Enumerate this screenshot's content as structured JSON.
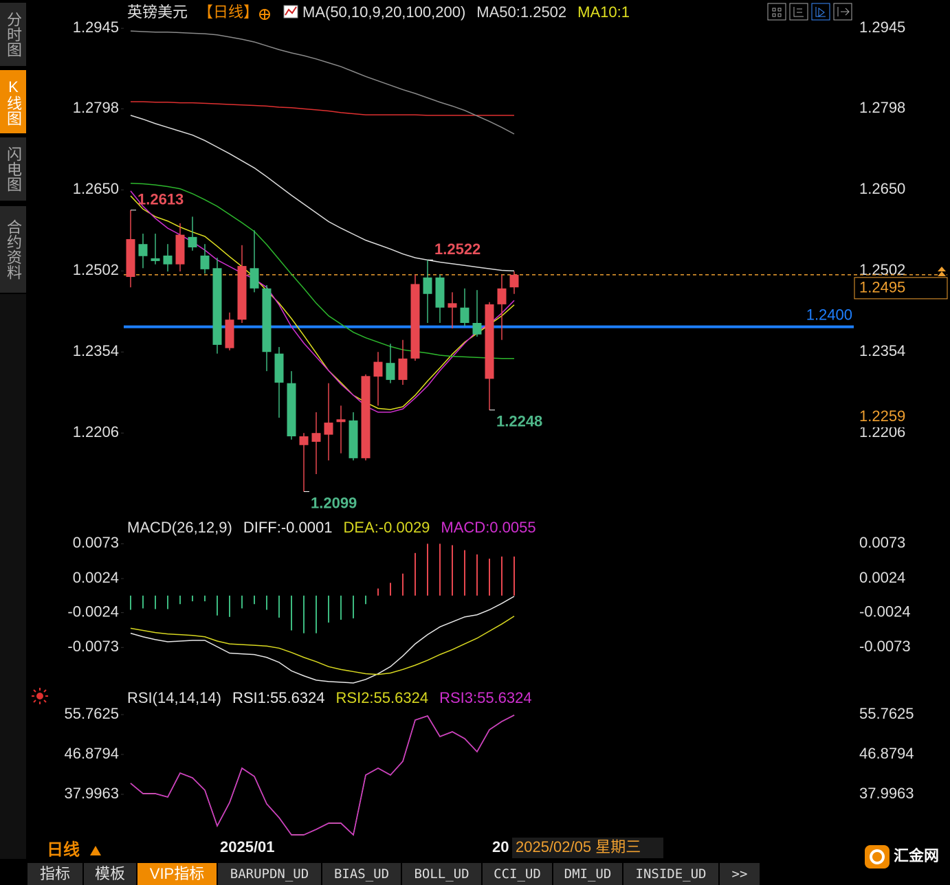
{
  "sidebar": [
    "分时图",
    "K线图",
    "闪电图",
    "合约资料"
  ],
  "header": {
    "symbol": "英镑美元",
    "period": "【日线】"
  },
  "period_label": "日线",
  "tabs": [
    "指标",
    "模板",
    "VIP指标",
    "BARUPDN_UD",
    "BIAS_UD",
    "BOLL_UD",
    "CCI_UD",
    "DMI_UD",
    "INSIDE_UD",
    ">>"
  ],
  "logo": "汇金网",
  "chart_data": [
    {
      "type": "candlestick",
      "indicator": "MA(50,10,9,20,100,200)",
      "categories": [
        null,
        null,
        null,
        null,
        null,
        null,
        null,
        "2025/01",
        null,
        null,
        null,
        null,
        null,
        null,
        null,
        null,
        null,
        null,
        null,
        null,
        null,
        null,
        null,
        null,
        null,
        null,
        null,
        null,
        null,
        "20",
        null,
        null
      ],
      "cursor_date": "2025/02/05 星期三",
      "up_color": "#e8474f",
      "down_color": "#3dbb80",
      "open": [
        1.2491,
        1.2551,
        1.2525,
        1.253,
        1.2514,
        1.2564,
        1.253,
        1.2507,
        1.2361,
        1.2413,
        1.2507,
        1.247,
        1.2351,
        1.2297,
        1.2184,
        1.219,
        1.2203,
        1.2226,
        1.2229,
        1.216,
        1.2309,
        1.2334,
        1.2303,
        1.2342,
        1.249,
        1.249,
        1.2435,
        1.2435,
        1.2407,
        1.2305,
        1.2441,
        1.2472
      ],
      "high": [
        1.2613,
        1.257,
        1.257,
        1.2551,
        1.2589,
        1.2601,
        1.2551,
        1.2526,
        1.2426,
        1.2549,
        1.2576,
        1.2476,
        1.2363,
        1.2319,
        1.2206,
        1.2244,
        1.2297,
        1.2256,
        1.2244,
        1.2313,
        1.2354,
        1.2369,
        1.2376,
        1.2495,
        1.2522,
        1.2495,
        1.2463,
        1.247,
        1.2467,
        1.2445,
        1.2495,
        1.2501
      ],
      "low": [
        1.2472,
        1.2507,
        1.2514,
        1.2501,
        1.2501,
        1.2539,
        1.2497,
        1.2351,
        1.2357,
        1.2407,
        1.2463,
        1.2319,
        1.2234,
        1.2194,
        1.2099,
        1.2131,
        1.2156,
        1.2169,
        1.2156,
        1.2156,
        1.2256,
        1.2297,
        1.2294,
        1.2338,
        1.2407,
        1.2407,
        1.2397,
        1.2401,
        1.2382,
        1.2248,
        1.2376,
        1.246
      ],
      "close": [
        1.256,
        1.2529,
        1.252,
        1.2514,
        1.2568,
        1.2545,
        1.2505,
        1.2367,
        1.2413,
        1.2511,
        1.247,
        1.2354,
        1.2298,
        1.22,
        1.22,
        1.2206,
        1.2225,
        1.2231,
        1.216,
        1.231,
        1.2336,
        1.2303,
        1.2342,
        1.2478,
        1.246,
        1.2435,
        1.2443,
        1.2407,
        1.2386,
        1.2441,
        1.247,
        1.2495
      ],
      "series": [
        {
          "name": "MA50:1.2502",
          "color": "#dcdcdc",
          "values": [
            1.2786,
            1.2779,
            1.2771,
            1.2764,
            1.2757,
            1.275,
            1.274,
            1.2728,
            1.2716,
            1.2703,
            1.269,
            1.2674,
            1.2657,
            1.264,
            1.2624,
            1.2608,
            1.2592,
            1.258,
            1.2569,
            1.2558,
            1.255,
            1.2542,
            1.2533,
            1.2526,
            1.2522,
            1.2518,
            1.2515,
            1.2512,
            1.2509,
            1.2506,
            1.2503,
            1.2502
          ]
        },
        {
          "name": "MA10:1",
          "color": "#e0e020",
          "values": [
            1.2639,
            1.2615,
            1.2601,
            1.2593,
            1.2582,
            1.2573,
            1.2565,
            1.2547,
            1.2528,
            1.251,
            1.249,
            1.2466,
            1.2443,
            1.2415,
            1.2384,
            1.2352,
            1.232,
            1.2298,
            1.2275,
            1.2262,
            1.2251,
            1.2249,
            1.2254,
            1.2275,
            1.2301,
            1.2325,
            1.235,
            1.2372,
            1.2388,
            1.2404,
            1.242,
            1.244
          ]
        },
        {
          "color": "#d030d0",
          "values": [
            1.2648,
            1.262,
            1.2598,
            1.258,
            1.2568,
            1.2555,
            1.254,
            1.2522,
            1.251,
            1.2498,
            1.2487,
            1.2472,
            1.244,
            1.24,
            1.237,
            1.2345,
            1.232,
            1.2295,
            1.2275,
            1.2255,
            1.2244,
            1.2244,
            1.225,
            1.227,
            1.2292,
            1.232,
            1.2345,
            1.237,
            1.2392,
            1.2405,
            1.2425,
            1.2448
          ]
        },
        {
          "color": "#2db82d",
          "values": [
            1.2662,
            1.2661,
            1.2659,
            1.2656,
            1.2652,
            1.2643,
            1.2632,
            1.262,
            1.2605,
            1.259,
            1.2574,
            1.255,
            1.2523,
            1.2496,
            1.247,
            1.2443,
            1.242,
            1.2405,
            1.239,
            1.238,
            1.2372,
            1.2364,
            1.2358,
            1.2355,
            1.2352,
            1.2348,
            1.2346,
            1.2345,
            1.2344,
            1.2343,
            1.2342,
            1.2342
          ]
        },
        {
          "color": "#e03030",
          "values": [
            1.2811,
            1.2811,
            1.281,
            1.281,
            1.2809,
            1.2809,
            1.2808,
            1.2807,
            1.2806,
            1.2805,
            1.2804,
            1.2803,
            1.2801,
            1.28,
            1.2798,
            1.2796,
            1.2794,
            1.2791,
            1.2789,
            1.2787,
            1.2787,
            1.2787,
            1.2787,
            1.2787,
            1.2786,
            1.2786,
            1.2786,
            1.2786,
            1.2786,
            1.2786,
            1.2786,
            1.2786
          ]
        },
        {
          "color": "#8a8a8a",
          "values": [
            1.294,
            1.2939,
            1.2938,
            1.2938,
            1.2937,
            1.2936,
            1.2935,
            1.2933,
            1.2929,
            1.2925,
            1.292,
            1.2913,
            1.2906,
            1.29,
            1.2895,
            1.2889,
            1.2882,
            1.2875,
            1.2866,
            1.2857,
            1.2849,
            1.2841,
            1.2833,
            1.2826,
            1.2818,
            1.281,
            1.2803,
            1.2795,
            1.2785,
            1.2775,
            1.2764,
            1.2752
          ]
        }
      ],
      "annotations": [
        1.2613,
        1.2522,
        1.2248,
        1.2099
      ],
      "hline": {
        "value": 1.24,
        "label": "1.2400",
        "color": "#1e7fff"
      },
      "price_line": {
        "value": 1.2495,
        "color": "#f0a030"
      },
      "cursor_price": 1.2259,
      "ylim": [
        1.2062,
        1.2959
      ],
      "yticks": [
        1.2945,
        1.2798,
        {
          "value": 1.265,
          "label": "1.2650"
        },
        1.2502,
        1.2354,
        1.2206
      ]
    },
    {
      "type": "macd",
      "title": "MACD(26,12,9)",
      "up_color": "#e8474f",
      "down_color": "#3dbb80",
      "series": [
        {
          "name": "DIFF:-0.0001",
          "color": "#e8e8e8",
          "values": [
            -0.0053,
            -0.0058,
            -0.0062,
            -0.0065,
            -0.0064,
            -0.0063,
            -0.0063,
            -0.0072,
            -0.0081,
            -0.0082,
            -0.0083,
            -0.0087,
            -0.0094,
            -0.0106,
            -0.0113,
            -0.0119,
            -0.0121,
            -0.0122,
            -0.0123,
            -0.0118,
            -0.011,
            -0.01,
            -0.0085,
            -0.0068,
            -0.0055,
            -0.0044,
            -0.0037,
            -0.003,
            -0.0027,
            -0.002,
            -0.0011,
            -0.0001
          ]
        },
        {
          "name": "DEA:-0.0029",
          "color": "#d8d820",
          "values": [
            -0.0046,
            -0.0049,
            -0.0052,
            -0.0054,
            -0.0055,
            -0.0056,
            -0.0058,
            -0.0064,
            -0.0068,
            -0.0069,
            -0.007,
            -0.0071,
            -0.0074,
            -0.008,
            -0.0087,
            -0.0093,
            -0.01,
            -0.0104,
            -0.0107,
            -0.011,
            -0.0111,
            -0.0109,
            -0.0104,
            -0.0098,
            -0.0091,
            -0.0083,
            -0.0076,
            -0.0068,
            -0.006,
            -0.005,
            -0.004,
            -0.0029
          ]
        },
        {
          "name": "MACD:0.0055",
          "color": "#d030d0",
          "type": "bar",
          "values": [
            -0.002,
            -0.0018,
            -0.0019,
            -0.0019,
            -0.0012,
            -0.0008,
            -0.0008,
            -0.0028,
            -0.003,
            -0.0018,
            -0.0012,
            -0.002,
            -0.0031,
            -0.0049,
            -0.0053,
            -0.0053,
            -0.0038,
            -0.0034,
            -0.0032,
            -0.0012,
            0.001,
            0.0018,
            0.0031,
            0.006,
            0.0073,
            0.0073,
            0.0071,
            0.0064,
            0.0058,
            0.0052,
            0.0055,
            0.0055
          ]
        }
      ],
      "ylim": [
        -0.0124,
        0.0084
      ],
      "yticks": [
        0.0073,
        0.0024,
        -0.0024,
        -0.0073
      ]
    },
    {
      "type": "line",
      "title": "RSI(14,14,14)",
      "series": [
        {
          "name": "RSI1:55.6324",
          "color": "#e8e8e8",
          "values": [
            40.45,
            38.15,
            38.15,
            37.38,
            42.74,
            41.67,
            38.91,
            30.95,
            36.16,
            43.82,
            41.98,
            35.85,
            32.79,
            28.96,
            28.96,
            30.18,
            31.56,
            31.56,
            28.96,
            42.29,
            43.82,
            42.29,
            45.35,
            54.54,
            55.46,
            50.86,
            51.93,
            50.4,
            47.49,
            52.39,
            54.23,
            55.6324
          ]
        },
        {
          "name": "RSI2:55.6324",
          "color": "#d8d820",
          "values": [
            40.45,
            38.15,
            38.15,
            37.38,
            42.74,
            41.67,
            38.91,
            30.95,
            36.16,
            43.82,
            41.98,
            35.85,
            32.79,
            28.96,
            28.96,
            30.18,
            31.56,
            31.56,
            28.96,
            42.29,
            43.82,
            42.29,
            45.35,
            54.54,
            55.46,
            50.86,
            51.93,
            50.4,
            47.49,
            52.39,
            54.23,
            55.6324
          ]
        },
        {
          "name": "RSI3:55.6324",
          "color": "#d030d0",
          "values": [
            40.45,
            38.15,
            38.15,
            37.38,
            42.74,
            41.67,
            38.91,
            30.95,
            36.16,
            43.82,
            41.98,
            35.85,
            32.79,
            28.96,
            28.96,
            30.18,
            31.56,
            31.56,
            28.96,
            42.29,
            43.82,
            42.29,
            45.35,
            54.54,
            55.46,
            50.86,
            51.93,
            50.4,
            47.49,
            52.39,
            54.23,
            55.6324
          ]
        }
      ],
      "ylim": [
        27.43,
        57.29
      ],
      "yticks": [
        55.7625,
        46.8794,
        37.9963
      ]
    }
  ]
}
